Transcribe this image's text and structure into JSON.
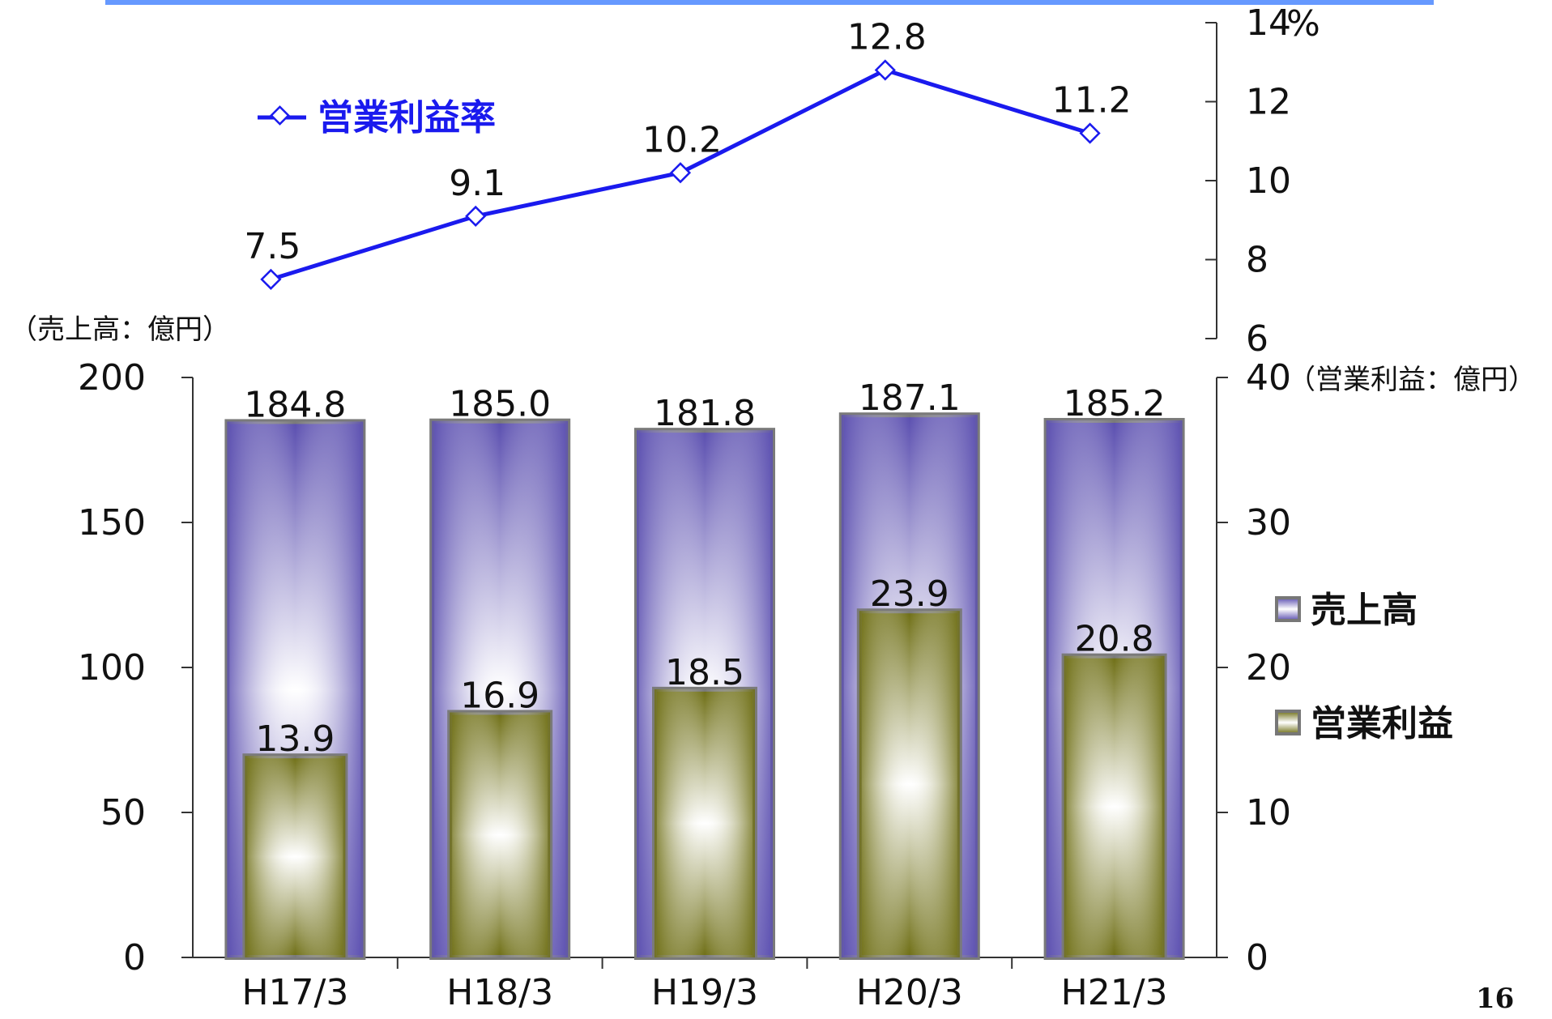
{
  "chart_data": {
    "type": "bar",
    "categories": [
      "H17/3",
      "H18/3",
      "H19/3",
      "H20/3",
      "H21/3"
    ],
    "series": [
      {
        "name": "売上高",
        "type": "bar",
        "axis": "left",
        "values": [
          184.8,
          185.0,
          181.8,
          187.1,
          185.2
        ],
        "labels": [
          "184.8",
          "185.0",
          "181.8",
          "187.1",
          "185.2"
        ],
        "color": "#6a5fb5"
      },
      {
        "name": "営業利益",
        "type": "bar",
        "axis": "right",
        "values": [
          13.9,
          16.9,
          18.5,
          23.9,
          20.8
        ],
        "labels": [
          "13.9",
          "16.9",
          "18.5",
          "23.9",
          "20.8"
        ],
        "color": "#7b7b22"
      },
      {
        "name": "営業利益率",
        "type": "line",
        "axis": "top-right",
        "values": [
          7.5,
          9.1,
          10.2,
          12.8,
          11.2
        ],
        "labels": [
          "7.5",
          "9.1",
          "10.2",
          "12.8",
          "11.2"
        ],
        "color": "#1a1aee"
      }
    ],
    "axes": {
      "left": {
        "label": "（売上高：億円）",
        "min": 0,
        "max": 200,
        "ticks": [
          "0",
          "50",
          "100",
          "150",
          "200"
        ]
      },
      "right": {
        "label": "（営業利益：億円）",
        "min": 0,
        "max": 40,
        "ticks": [
          "0",
          "10",
          "20",
          "30",
          "40"
        ]
      },
      "top_right": {
        "unit": "%",
        "min": 6,
        "max": 14,
        "ticks": [
          "6",
          "8",
          "10",
          "12",
          "14"
        ]
      }
    },
    "grid": false,
    "legend": {
      "bars_position": "right",
      "line_position": "top-left"
    }
  },
  "page_number": "16",
  "colors": {
    "accent_bar": "#6699ff",
    "axis": "#333333"
  }
}
